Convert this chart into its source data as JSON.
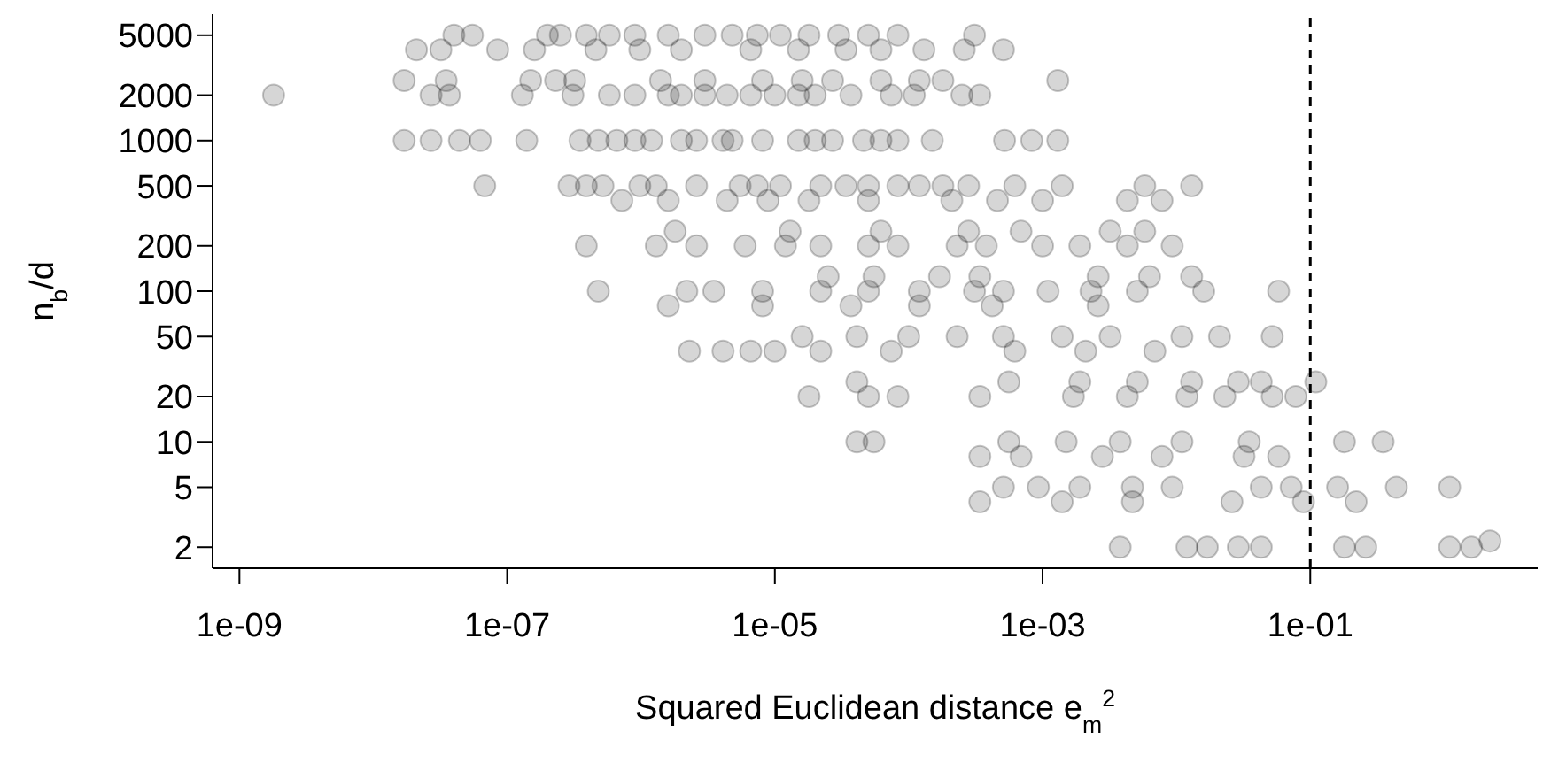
{
  "chart_data": {
    "type": "scatter",
    "xlabel": "Squared Euclidean distance e$_{m}$$^{2}$",
    "ylabel": "n$_{b}$/d",
    "log": "xy",
    "marker": "circle",
    "grid": false,
    "legend": false,
    "xlim": [
      6.3e-10,
      5
    ],
    "ylim": [
      1.45,
      6900
    ],
    "xticks": [
      {
        "value": 1e-09,
        "label": "1e-09"
      },
      {
        "value": 1e-07,
        "label": "1e-07"
      },
      {
        "value": 1e-05,
        "label": "1e-05"
      },
      {
        "value": 0.001,
        "label": "1e-03"
      },
      {
        "value": 0.1,
        "label": "1e-01"
      }
    ],
    "yticks": [
      2,
      5,
      10,
      20,
      50,
      100,
      200,
      500,
      1000,
      2000,
      5000
    ],
    "ref_lines": [
      {
        "axis": "x",
        "value": 0.1,
        "label": null,
        "color": "#000000",
        "line_style": "dashed"
      }
    ],
    "series": [
      {
        "color": "#000000",
        "x": [
          4e-08,
          5.5e-08,
          2e-07,
          2.5e-07,
          3.9e-07,
          5.8e-07,
          9e-07,
          1.6e-06,
          3e-06,
          4.8e-06,
          7.4e-06,
          1.1e-05,
          1.8e-05,
          3e-05,
          5e-05,
          8.3e-05,
          0.00031,
          2.1e-08,
          3.2e-08,
          8.5e-08,
          1.6e-07,
          4.6e-07,
          9.8e-07,
          2e-06,
          6.6e-06,
          1.5e-05,
          3.4e-05,
          6.2e-05,
          0.00013,
          0.00026,
          0.00051,
          1.7e-08,
          3.5e-08,
          1.5e-07,
          2.3e-07,
          3.2e-07,
          1.4e-06,
          3e-06,
          8.1e-06,
          1.6e-05,
          2.7e-05,
          6.2e-05,
          0.00012,
          0.00018,
          0.0013,
          1.8e-09,
          2.7e-08,
          3.7e-08,
          1.3e-07,
          3.1e-07,
          5.8e-07,
          9e-07,
          1.6e-06,
          2e-06,
          3e-06,
          4.4e-06,
          6.6e-06,
          1e-05,
          1.5e-05,
          2e-05,
          3.7e-05,
          7.4e-05,
          0.00011,
          0.00025,
          0.00034,
          1.7e-08,
          2.7e-08,
          4.4e-08,
          6.3e-08,
          1.4e-07,
          3.5e-07,
          4.8e-07,
          6.6e-07,
          9e-07,
          1.2e-06,
          2e-06,
          2.6e-06,
          4.1e-06,
          4.8e-06,
          8.1e-06,
          1.5e-05,
          2e-05,
          2.7e-05,
          4.6e-05,
          6.2e-05,
          8.3e-05,
          0.00015,
          0.00052,
          0.00083,
          0.0013,
          6.8e-08,
          2.9e-07,
          3.9e-07,
          5.2e-07,
          9.8e-07,
          1.3e-06,
          2.6e-06,
          5.5e-06,
          7.4e-06,
          1.1e-05,
          2.2e-05,
          3.4e-05,
          5e-05,
          8.3e-05,
          0.00012,
          0.00018,
          0.00028,
          0.00062,
          0.0014,
          0.0058,
          0.013,
          7.2e-07,
          1.6e-06,
          4.4e-06,
          8.9e-06,
          1.8e-05,
          5e-05,
          0.00021,
          0.00046,
          0.001,
          0.0043,
          0.0078,
          1.8e-06,
          1.3e-05,
          6.2e-05,
          0.00028,
          0.00069,
          0.0032,
          0.0058,
          3.9e-07,
          1.3e-06,
          2.6e-06,
          6e-06,
          1.2e-05,
          2.2e-05,
          5e-05,
          8.3e-05,
          0.00023,
          0.00038,
          0.001,
          0.0019,
          0.0043,
          0.0093,
          2.5e-05,
          5.5e-05,
          0.00017,
          0.00034,
          0.0026,
          0.0063,
          0.013,
          4.8e-07,
          2.2e-06,
          3.5e-06,
          8.1e-06,
          2.2e-05,
          5e-05,
          0.00012,
          0.00031,
          0.00051,
          0.0011,
          0.0023,
          0.0051,
          0.016,
          0.058,
          1.6e-06,
          8.1e-06,
          3.7e-05,
          0.00012,
          0.00042,
          0.0026,
          1.6e-05,
          4.1e-05,
          0.0001,
          0.00023,
          0.00051,
          0.0014,
          0.0032,
          0.011,
          0.021,
          0.052,
          2.3e-06,
          4.1e-06,
          6.6e-06,
          1e-05,
          2.2e-05,
          7.4e-05,
          0.00062,
          0.0021,
          0.0069,
          4.1e-05,
          0.00056,
          0.0019,
          0.0051,
          0.013,
          0.029,
          0.043,
          0.11,
          1.8e-05,
          5e-05,
          8.3e-05,
          0.00034,
          0.0017,
          0.0043,
          0.012,
          0.023,
          0.052,
          0.078,
          4.1e-05,
          5.5e-05,
          0.00056,
          0.0015,
          0.0038,
          0.011,
          0.035,
          0.18,
          0.35,
          0.00034,
          0.00069,
          0.0028,
          0.0078,
          0.032,
          0.058,
          0.00051,
          0.00093,
          0.0019,
          0.0047,
          0.0093,
          0.043,
          0.072,
          0.16,
          0.44,
          1.1,
          0.00034,
          0.0014,
          0.0047,
          0.026,
          0.089,
          0.22,
          0.0038,
          0.012,
          0.017,
          0.029,
          0.043,
          0.18,
          0.26,
          1.1,
          1.6,
          2.2
        ],
        "values": [
          5000,
          5000,
          5000,
          5000,
          5000,
          5000,
          5000,
          5000,
          5000,
          5000,
          5000,
          5000,
          5000,
          5000,
          5000,
          5000,
          5000,
          4000,
          4000,
          4000,
          4000,
          4000,
          4000,
          4000,
          4000,
          4000,
          4000,
          4000,
          4000,
          4000,
          4000,
          2500,
          2500,
          2500,
          2500,
          2500,
          2500,
          2500,
          2500,
          2500,
          2500,
          2500,
          2500,
          2500,
          2500,
          2000,
          2000,
          2000,
          2000,
          2000,
          2000,
          2000,
          2000,
          2000,
          2000,
          2000,
          2000,
          2000,
          2000,
          2000,
          2000,
          2000,
          2000,
          2000,
          2000,
          1000,
          1000,
          1000,
          1000,
          1000,
          1000,
          1000,
          1000,
          1000,
          1000,
          1000,
          1000,
          1000,
          1000,
          1000,
          1000,
          1000,
          1000,
          1000,
          1000,
          1000,
          1000,
          1000,
          1000,
          1000,
          500,
          500,
          500,
          500,
          500,
          500,
          500,
          500,
          500,
          500,
          500,
          500,
          500,
          500,
          500,
          500,
          500,
          500,
          500,
          500,
          500,
          400,
          400,
          400,
          400,
          400,
          400,
          400,
          400,
          400,
          400,
          400,
          250,
          250,
          250,
          250,
          250,
          250,
          250,
          200,
          200,
          200,
          200,
          200,
          200,
          200,
          200,
          200,
          200,
          200,
          200,
          200,
          200,
          125,
          125,
          125,
          125,
          125,
          125,
          125,
          100,
          100,
          100,
          100,
          100,
          100,
          100,
          100,
          100,
          100,
          100,
          100,
          100,
          100,
          80,
          80,
          80,
          80,
          80,
          80,
          50,
          50,
          50,
          50,
          50,
          50,
          50,
          50,
          50,
          50,
          40,
          40,
          40,
          40,
          40,
          40,
          40,
          40,
          40,
          25,
          25,
          25,
          25,
          25,
          25,
          25,
          25,
          20,
          20,
          20,
          20,
          20,
          20,
          20,
          20,
          20,
          20,
          10,
          10,
          10,
          10,
          10,
          10,
          10,
          10,
          10,
          8,
          8,
          8,
          8,
          8,
          8,
          5,
          5,
          5,
          5,
          5,
          5,
          5,
          5,
          5,
          5,
          4,
          4,
          4,
          4,
          4,
          4,
          2,
          2,
          2,
          2,
          2,
          2,
          2,
          2,
          2,
          2.2
        ]
      }
    ]
  }
}
